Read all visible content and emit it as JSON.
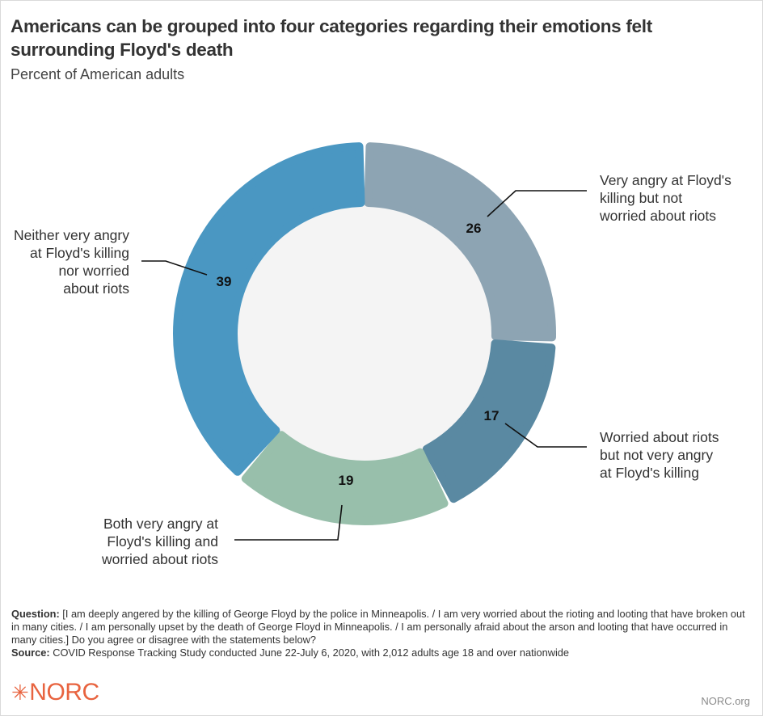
{
  "header": {
    "title": "Americans can be grouped into four categories regarding their emotions felt surrounding Floyd's death",
    "subtitle": "Percent of American adults"
  },
  "chart_data": {
    "type": "pie",
    "donut": true,
    "title": "Americans can be grouped into four categories regarding their emotions felt surrounding Floyd's death",
    "subtitle": "Percent of American adults",
    "categories": [
      "Very angry at Floyd's killing but not worried about riots",
      "Worried about riots but not very angry at Floyd's killing",
      "Both very angry at Floyd's killing and worried about riots",
      "Neither very angry at Floyd's killing nor worried about riots"
    ],
    "values": [
      26,
      17,
      19,
      39
    ],
    "colors": [
      "#8da4b3",
      "#5a89a2",
      "#98bfab",
      "#4a97c2"
    ],
    "data_labels": [
      "26",
      "17",
      "19",
      "39"
    ]
  },
  "labels": {
    "very_angry_not_worried": [
      "Very angry at Floyd's",
      "killing but not",
      "worried about riots"
    ],
    "worried_not_angry": [
      "Worried about riots",
      "but not very angry",
      "at Floyd's killing"
    ],
    "both": [
      "Both very angry at",
      "Floyd's killing and",
      "worried about riots"
    ],
    "neither": [
      "Neither very angry",
      "at Floyd's killing",
      "nor worried",
      "about riots"
    ]
  },
  "notes": {
    "question_label": "Question:",
    "question_text": " [I am deeply angered by the killing of George Floyd by the police in Minneapolis. / I am very worried about the rioting and looting that have broken out in many cities. / I am personally upset by the death of George Floyd in Minneapolis. / I am personally afraid about the arson and looting that have occurred in many cities.] Do you agree or disagree with the statements below?",
    "source_label": "Source:",
    "source_text": " COVID Response Tracking Study conducted June 22-July 6, 2020, with 2,012 adults age 18 and over nationwide"
  },
  "footer": {
    "logo_star": "✳",
    "logo_text": "NORC",
    "site": "NORC.org",
    "logo_color": "#e8633f"
  }
}
